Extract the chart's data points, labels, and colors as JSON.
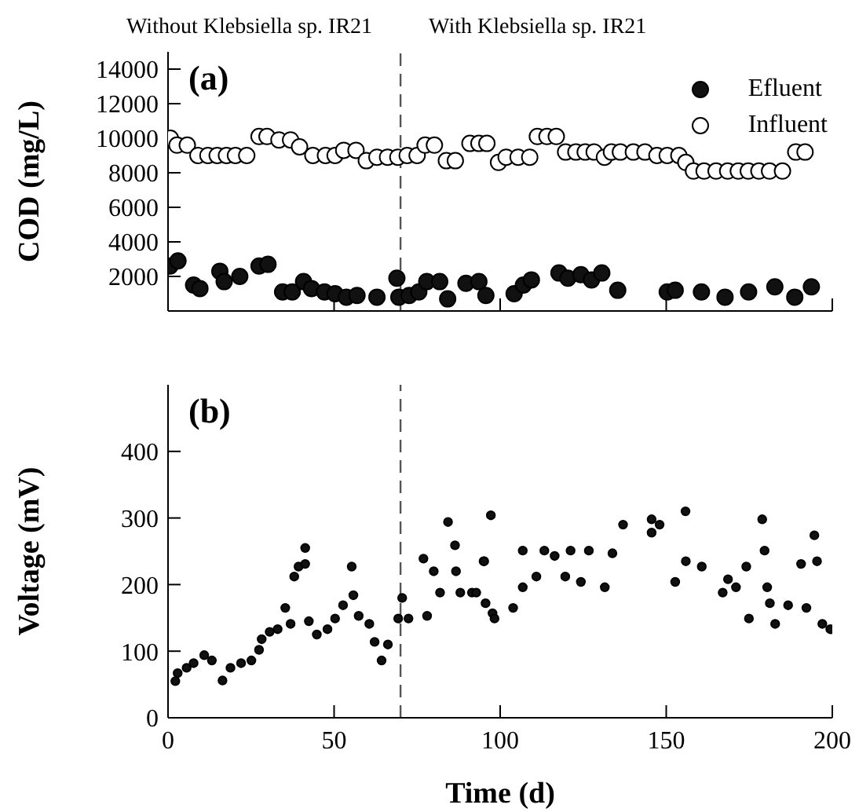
{
  "chart_data": [
    {
      "type": "scatter",
      "ylabel": "COD (mg/L)",
      "annotations": [
        "Without Klebsiella sp. IR21",
        "With Klebsiella sp. IR21",
        "(a)"
      ],
      "xlim": [
        0,
        200
      ],
      "xticks": [
        0,
        50,
        100,
        150,
        200
      ],
      "ylim": [
        0,
        15000
      ],
      "yticks": [
        2000,
        4000,
        6000,
        8000,
        10000,
        12000,
        14000
      ],
      "tick_labels": "y",
      "legend": "top right",
      "marker": "circle",
      "ref_lines": [
        {
          "axis": "x",
          "value": 70,
          "line_style": "dashed",
          "color": "#555555"
        }
      ],
      "series": [
        {
          "name": "Efluent",
          "color": "#111111",
          "x": [
            0.6,
            3.0,
            7.7,
            9.6,
            15.6,
            16.9,
            21.6,
            27.4,
            30.1,
            34.5,
            37.4,
            40.8,
            43.2,
            47.1,
            50.3,
            53.7,
            56.9,
            62.9,
            68.9,
            69.5,
            72.6,
            75.5,
            77.9,
            81.8,
            84.2,
            89.7,
            93.6,
            95.7,
            104.2,
            107,
            109.4,
            117.7,
            120.4,
            124.3,
            127.5,
            130.6,
            135.4,
            150.3,
            152.7,
            160.6,
            167.7,
            174.8,
            182.7,
            188.7,
            193.7
          ],
          "values": [
            2600,
            2900,
            1500,
            1300,
            2300,
            1700,
            2000,
            2600,
            2700,
            1100,
            1100,
            1700,
            1300,
            1100,
            1000,
            800,
            900,
            800,
            1900,
            800,
            900,
            1100,
            1700,
            1700,
            700,
            1600,
            1700,
            900,
            1000,
            1500,
            1800,
            2200,
            1900,
            2100,
            1800,
            2200,
            1200,
            1100,
            1200,
            1100,
            800,
            1100,
            1400,
            800,
            1400
          ]
        },
        {
          "name": "Influent",
          "color": "#ffffff",
          "x": [
            0.7,
            2.7,
            5.8,
            9,
            12,
            14.8,
            17.6,
            20.3,
            23.7,
            27.4,
            29.8,
            33.4,
            36.9,
            39.6,
            43.6,
            47.4,
            50.3,
            52.9,
            56.6,
            59.7,
            62.9,
            66.1,
            69.2,
            72,
            75,
            77.4,
            80.2,
            83.8,
            86.5,
            90.9,
            93.6,
            96,
            99.5,
            101.8,
            105.4,
            108.9,
            111.2,
            114.1,
            116.9,
            119.7,
            122.8,
            125.6,
            128.3,
            131.4,
            133.5,
            136.2,
            140.1,
            143.6,
            147.2,
            150.3,
            153.8,
            155.9,
            158.2,
            161.4,
            165,
            168.5,
            171.7,
            174.7,
            177.9,
            181.1,
            185,
            189,
            191.8
          ],
          "values": [
            10000,
            9600,
            9600,
            9000,
            9000,
            9000,
            9000,
            9000,
            9000,
            10100,
            10100,
            9900,
            9900,
            9500,
            9000,
            9000,
            9000,
            9300,
            9300,
            8700,
            8900,
            8900,
            8900,
            9000,
            9000,
            9600,
            9600,
            8700,
            8700,
            9700,
            9700,
            9700,
            8600,
            8900,
            8900,
            8900,
            10100,
            10100,
            10100,
            9200,
            9200,
            9200,
            9200,
            8900,
            9200,
            9200,
            9200,
            9200,
            9000,
            9000,
            9000,
            8600,
            8100,
            8100,
            8100,
            8100,
            8100,
            8100,
            8100,
            8100,
            8100,
            9200,
            9200
          ]
        }
      ]
    },
    {
      "type": "scatter",
      "ylabel": "Voltage (mV)",
      "xlabel": "Time (d)",
      "annotations": [
        "(b)"
      ],
      "xlim": [
        0,
        200
      ],
      "xticks": [
        0,
        50,
        100,
        150,
        200
      ],
      "ylim": [
        0,
        500
      ],
      "yticks": [
        0,
        100,
        200,
        300,
        400
      ],
      "marker": "circle",
      "ref_lines": [
        {
          "axis": "x",
          "value": 70,
          "line_style": "dashed",
          "color": "#555555"
        }
      ],
      "series": [
        {
          "color": "#111111",
          "x": [
            2.2,
            2.9,
            5.6,
            7.7,
            10.9,
            13.2,
            16.4,
            18.8,
            22,
            25.1,
            27.4,
            28.2,
            30.6,
            33,
            35.3,
            36.9,
            38,
            39.3,
            41.3,
            41.3,
            42.4,
            44.8,
            48,
            50.3,
            52.7,
            55.3,
            55.8,
            57.4,
            60.6,
            62.2,
            64.3,
            66.2,
            69.3,
            70.5,
            72.4,
            76.9,
            78,
            80,
            81.9,
            84.3,
            86.4,
            86.7,
            88,
            91.5,
            92.8,
            95,
            95.2,
            95.6,
            97.2,
            97.7,
            98.3,
            103.9,
            106.8,
            106.8,
            110.9,
            113.3,
            116.4,
            119.6,
            121.2,
            124.3,
            126.7,
            131.5,
            133.8,
            137,
            145.6,
            145.6,
            148,
            152.7,
            155.8,
            155.9,
            160.7,
            167,
            168.6,
            171,
            174.1,
            174.9,
            178.9,
            179.6,
            180.4,
            181.2,
            182.8,
            186.7,
            190.6,
            192.2,
            194.6,
            195.4,
            197,
            199.4
          ],
          "values": [
            55,
            67,
            75,
            82,
            94,
            86,
            56,
            75,
            82,
            86,
            102,
            118,
            129,
            133,
            165,
            141,
            212,
            227,
            231,
            255,
            145,
            125,
            133,
            149,
            169,
            227,
            184,
            153,
            141,
            114,
            86,
            110,
            149,
            180,
            149,
            239,
            153,
            220,
            188,
            294,
            259,
            220,
            188,
            188,
            188,
            235,
            235,
            172,
            304,
            157,
            149,
            165,
            251,
            196,
            212,
            251,
            243,
            212,
            251,
            204,
            251,
            196,
            247,
            290,
            298,
            278,
            290,
            204,
            310,
            235,
            227,
            188,
            208,
            196,
            227,
            149,
            298,
            251,
            196,
            172,
            141,
            169,
            231,
            165,
            274,
            235,
            141,
            133
          ]
        }
      ]
    }
  ]
}
